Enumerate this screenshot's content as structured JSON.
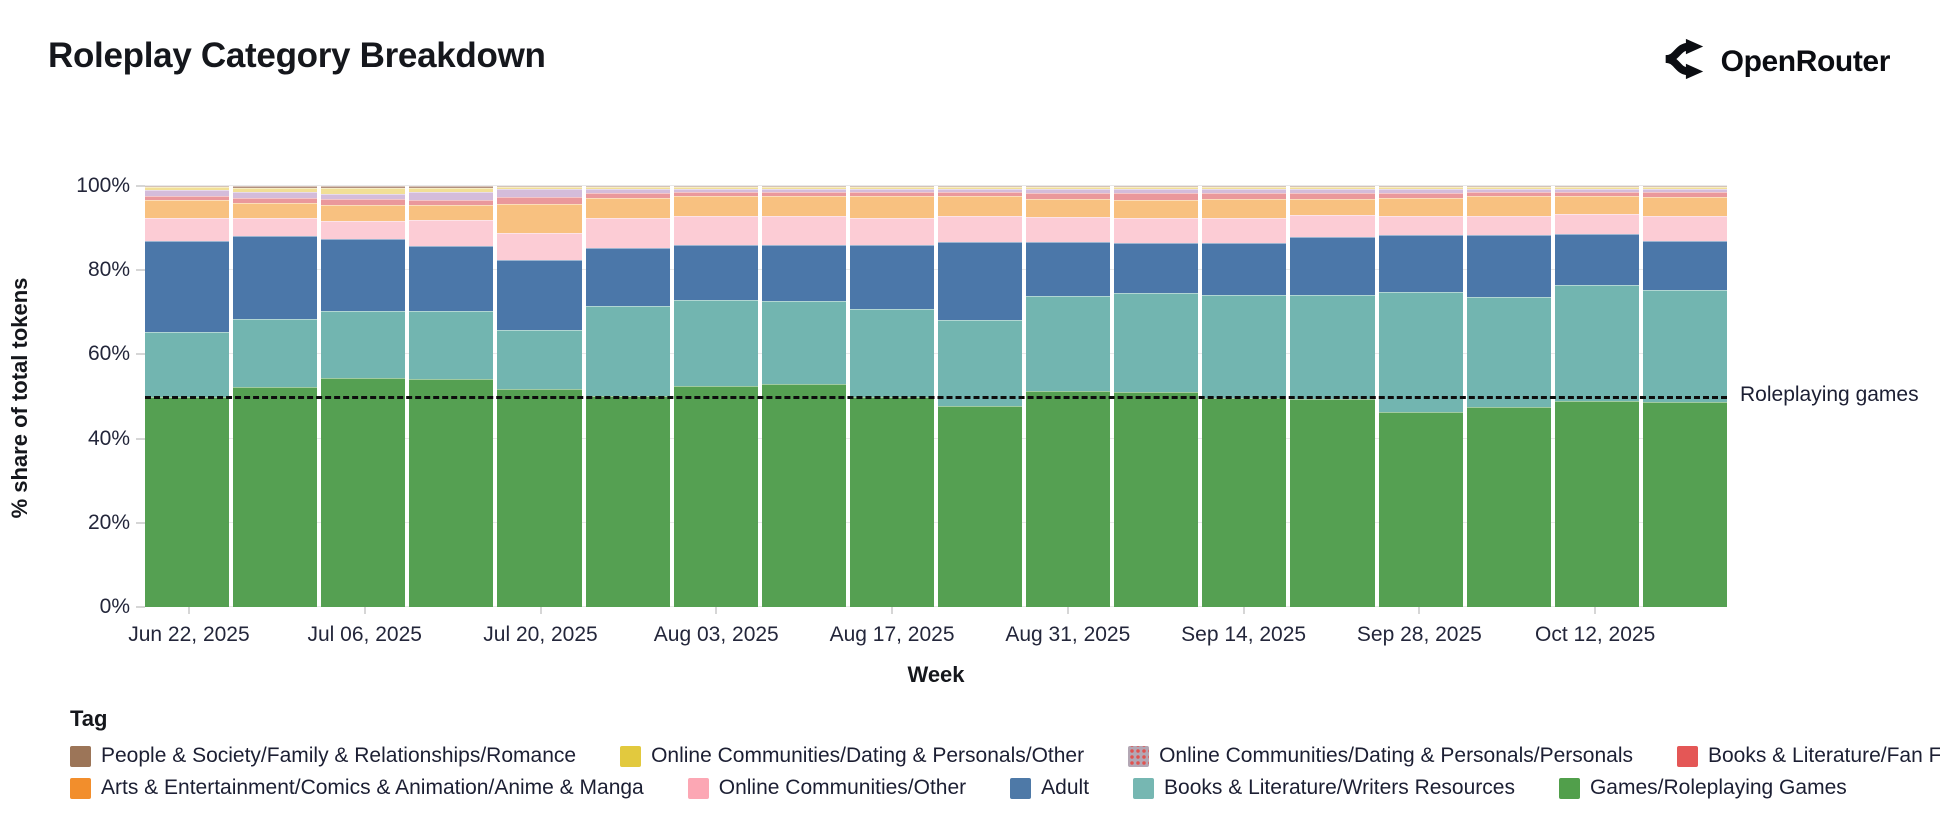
{
  "header": {
    "title": "Roleplay Category Breakdown",
    "brand": "OpenRouter"
  },
  "chart_data": {
    "type": "bar",
    "variant": "100%-stacked-weekly",
    "title": "Roleplay Category Breakdown",
    "xlabel": "Week",
    "ylabel": "% share of total tokens",
    "ylim": [
      0,
      100
    ],
    "grid": "horizontal",
    "ytick_values": [
      0,
      20,
      40,
      60,
      80,
      100
    ],
    "ytick_labels": [
      "0%",
      "20%",
      "40%",
      "60%",
      "80%",
      "100%"
    ],
    "categories": [
      "Jun 22, 2025",
      "Jun 29, 2025",
      "Jul 06, 2025",
      "Jul 13, 2025",
      "Jul 20, 2025",
      "Jul 27, 2025",
      "Aug 03, 2025",
      "Aug 10, 2025",
      "Aug 17, 2025",
      "Aug 24, 2025",
      "Aug 31, 2025",
      "Sep 07, 2025",
      "Sep 14, 2025",
      "Sep 21, 2025",
      "Sep 28, 2025",
      "Oct 05, 2025",
      "Oct 12, 2025",
      "Oct 19, 2025"
    ],
    "xtick_indices": [
      0,
      2,
      4,
      6,
      8,
      10,
      12,
      14,
      16
    ],
    "stack_order": "bottom-to-top",
    "series": [
      {
        "name": "Games/Roleplaying Games",
        "color": "#55a052",
        "legend_color": "#519f4b",
        "values": [
          50.0,
          52.3,
          54.4,
          54.2,
          51.8,
          50.1,
          52.6,
          52.9,
          50.0,
          47.7,
          51.4,
          51.0,
          49.7,
          49.4,
          46.3,
          47.5,
          48.9,
          48.7
        ]
      },
      {
        "name": "Books & Literature/Writers Resources",
        "color": "#72b5b0",
        "legend_color": "#76b7b2",
        "values": [
          15.3,
          16.0,
          15.9,
          16.1,
          14.1,
          21.5,
          20.4,
          19.7,
          20.8,
          20.4,
          22.4,
          23.5,
          24.4,
          24.7,
          28.5,
          26.1,
          27.5,
          26.5
        ]
      },
      {
        "name": "Adult",
        "color": "#4b77a9",
        "legend_color": "#4e79a7",
        "values": [
          21.6,
          19.8,
          17.0,
          15.4,
          16.6,
          13.7,
          13.1,
          13.5,
          15.3,
          18.6,
          12.9,
          11.9,
          12.3,
          13.9,
          13.5,
          14.7,
          12.1,
          11.7
        ]
      },
      {
        "name": "Online Communities/Other",
        "color": "#fcccd5",
        "legend_color": "#fca7b4",
        "values": [
          5.4,
          4.3,
          4.3,
          6.3,
          6.4,
          7.1,
          6.7,
          6.7,
          6.3,
          6.1,
          5.9,
          6.0,
          5.9,
          5.2,
          4.5,
          4.7,
          4.9,
          5.9
        ]
      },
      {
        "name": "Arts & Entertainment/Comics & Animation/Anime & Manga",
        "color": "#f8c180",
        "legend_color": "#f28e2c",
        "values": [
          4.3,
          3.6,
          3.9,
          3.4,
          6.9,
          4.8,
          4.8,
          4.8,
          5.2,
          4.8,
          4.4,
          4.4,
          4.7,
          3.8,
          4.4,
          4.6,
          4.2,
          4.6
        ]
      },
      {
        "name": "Books & Literature/Fan Fiction",
        "color": "#ea989b",
        "legend_color": "#e45756",
        "values": [
          1.1,
          1.2,
          1.5,
          1.2,
          1.5,
          1.2,
          1.0,
          1.0,
          0.9,
          0.9,
          1.4,
          1.6,
          1.4,
          1.4,
          1.2,
          0.9,
          0.9,
          1.1
        ]
      },
      {
        "name": "Online Communities/Dating & Personals/Personals",
        "color": "#d4bcda",
        "legend_color": "#b3a7b4",
        "pattern": "dots",
        "values": [
          1.3,
          1.3,
          1.2,
          2.1,
          1.9,
          0.8,
          0.6,
          0.6,
          0.8,
          0.8,
          0.8,
          0.8,
          0.8,
          0.8,
          0.8,
          0.9,
          0.7,
          0.7
        ]
      },
      {
        "name": "Online Communities/Dating & Personals/Other",
        "color": "#f1df96",
        "legend_color": "#e2c93e",
        "values": [
          0.8,
          1.1,
          1.3,
          0.9,
          0.6,
          0.6,
          0.6,
          0.6,
          0.5,
          0.5,
          0.6,
          0.6,
          0.6,
          0.6,
          0.6,
          0.4,
          0.6,
          0.6
        ]
      },
      {
        "name": "People & Society/Family & Relationships/Romance",
        "color": "#b2907f",
        "legend_color": "#9c7558",
        "values": [
          0.2,
          0.4,
          0.5,
          0.4,
          0.2,
          0.2,
          0.2,
          0.2,
          0.2,
          0.2,
          0.2,
          0.2,
          0.2,
          0.2,
          0.2,
          0.2,
          0.2,
          0.2
        ]
      }
    ],
    "legend_title": "Tag",
    "legend_rows": [
      [
        "People & Society/Family & Relationships/Romance",
        "Online Communities/Dating & Personals/Other",
        "Online Communities/Dating & Personals/Personals",
        "Books & Literature/Fan Fiction"
      ],
      [
        "Arts & Entertainment/Comics & Animation/Anime & Manga",
        "Online Communities/Other",
        "Adult",
        "Books & Literature/Writers Resources",
        "Games/Roleplaying Games"
      ]
    ],
    "annotation": {
      "text": "Roleplaying games",
      "y": 50,
      "line_style": "dashed",
      "line_color": "#0d0d0d"
    }
  }
}
